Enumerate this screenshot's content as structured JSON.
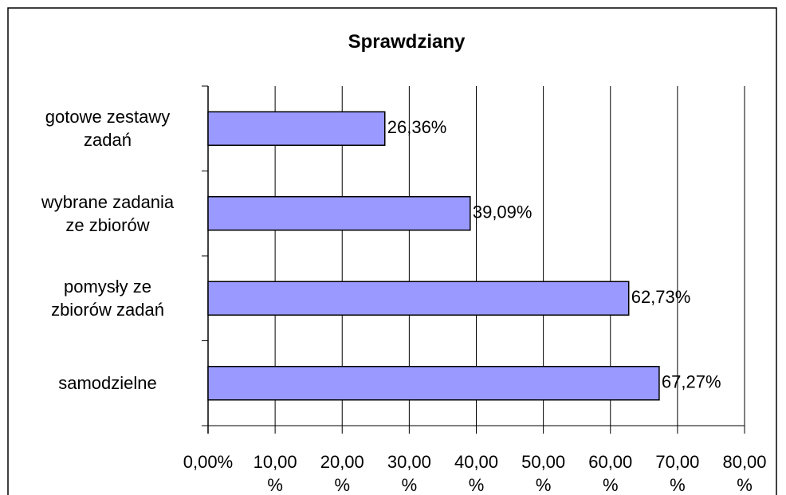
{
  "chart_data": {
    "type": "barh",
    "title": "Sprawdziany",
    "categories": [
      "gotowe zestawy zadań",
      "wybrane zadania ze zbiorów",
      "pomysły ze zbiorów zadań",
      "samodzielne"
    ],
    "values": [
      26.36,
      39.09,
      62.73,
      67.27
    ],
    "value_labels": [
      "26,36%",
      "39,09%",
      "62,73%",
      "67,27%"
    ],
    "color": "#9999ff",
    "xlim": [
      0,
      80
    ],
    "xticks": [
      {
        "value": 0,
        "label": "0,00%"
      },
      {
        "value": 10,
        "label": "10,00 %"
      },
      {
        "value": 20,
        "label": "20,00 %"
      },
      {
        "value": 30,
        "label": "30,00 %"
      },
      {
        "value": 40,
        "label": "40,00 %"
      },
      {
        "value": 50,
        "label": "50,00 %"
      },
      {
        "value": 60,
        "label": "60,00 %"
      },
      {
        "value": 70,
        "label": "70,00 %"
      },
      {
        "value": 80,
        "label": "80,00 %"
      }
    ],
    "grid": true
  }
}
